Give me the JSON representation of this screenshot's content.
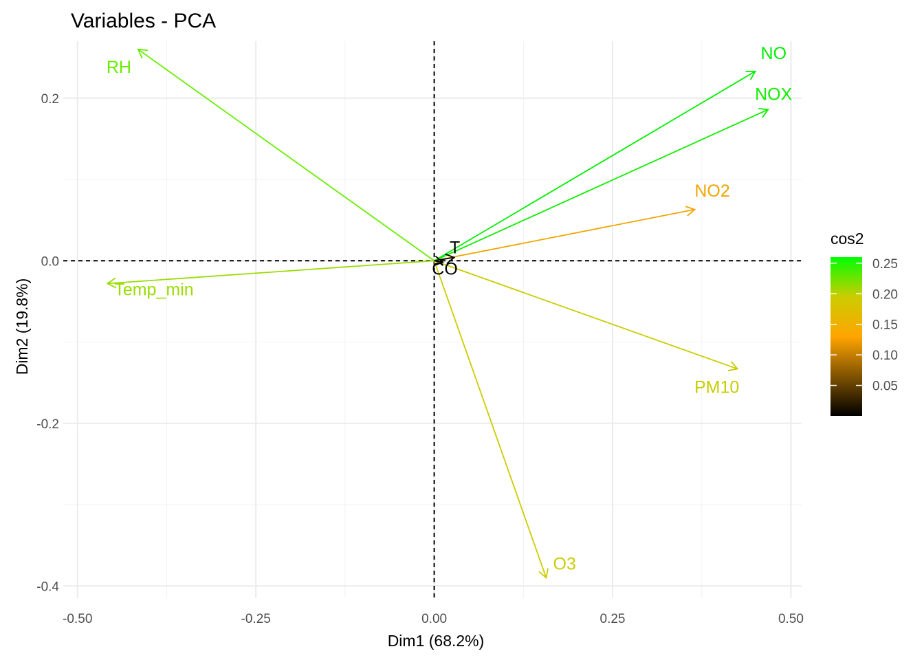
{
  "chart_data": {
    "type": "scatter",
    "subtype": "pca-variable-correlation-arrows",
    "title": "Variables - PCA",
    "xlabel": "Dim1 (68.2%)",
    "ylabel": "Dim2 (19.8%)",
    "xlim": [
      -0.52,
      0.515
    ],
    "ylim": [
      -0.415,
      0.27
    ],
    "x_ticks": [
      -0.5,
      -0.25,
      0.0,
      0.25,
      0.5
    ],
    "x_tick_labels": [
      "-0.50",
      "-0.25",
      "0.00",
      "0.25",
      "0.50"
    ],
    "y_ticks": [
      -0.4,
      -0.2,
      0.0,
      0.2
    ],
    "y_tick_labels": [
      "-0.4",
      "-0.2",
      "0.0",
      "0.2"
    ],
    "grid": true,
    "reference_lines": {
      "x": 0,
      "y": 0,
      "style": "dashed"
    },
    "variables": [
      {
        "name": "RH",
        "x": -0.415,
        "y": 0.26,
        "cos2": 0.24,
        "color": "#66EE00",
        "label_anchor": "end"
      },
      {
        "name": "NO",
        "x": 0.45,
        "y": 0.233,
        "cos2": 0.257,
        "color": "#00EE00",
        "label_anchor": "start"
      },
      {
        "name": "NOX",
        "x": 0.468,
        "y": 0.186,
        "cos2": 0.255,
        "color": "#11EE00",
        "label_anchor": "middle"
      },
      {
        "name": "NO2",
        "x": 0.365,
        "y": 0.063,
        "cos2": 0.15,
        "color": "#F0A500",
        "label_anchor": "start"
      },
      {
        "name": "PM10",
        "x": 0.425,
        "y": -0.133,
        "cos2": 0.2,
        "color": "#C8CC00",
        "label_anchor": "middle"
      },
      {
        "name": "O3",
        "x": 0.157,
        "y": -0.39,
        "cos2": 0.195,
        "color": "#CCCC00",
        "label_anchor": "start"
      },
      {
        "name": "Temp_min",
        "x": -0.458,
        "y": -0.028,
        "cos2": 0.22,
        "color": "#99DD00",
        "label_anchor": "start"
      },
      {
        "name": "CO",
        "x": 0.012,
        "y": -0.002,
        "cos2": 0.003,
        "color": "#000000",
        "label_anchor": "middle"
      },
      {
        "name": "T",
        "x": 0.028,
        "y": 0.004,
        "cos2": 0.004,
        "color": "#000000",
        "label_anchor": "middle"
      }
    ],
    "legend": {
      "title": "cos2",
      "position": "right",
      "ticks": [
        0.05,
        0.1,
        0.15,
        0.2,
        0.25
      ],
      "tick_labels": [
        "0.05",
        "0.10",
        "0.15",
        "0.20",
        "0.25"
      ],
      "range": [
        0.0,
        0.26
      ],
      "gradient": [
        "#000000",
        "#FFA500",
        "#CCCC00",
        "#00FF00"
      ]
    }
  }
}
